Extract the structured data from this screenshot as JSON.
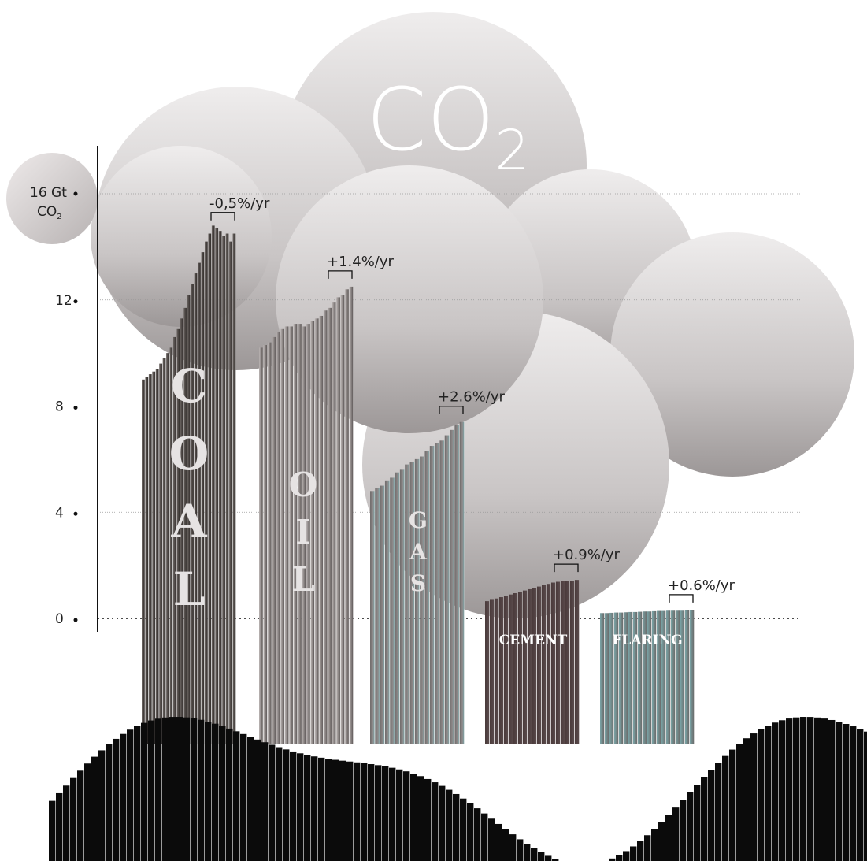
{
  "chart_data": {
    "type": "bar",
    "unit_label": "16 Gt",
    "unit_sub": "CO",
    "unit_sub_small": "2",
    "cloud_title": "CO",
    "cloud_title_sub": "2",
    "ylim": [
      0,
      16
    ],
    "yticks": [
      {
        "value": 0,
        "label": "0"
      },
      {
        "value": 4,
        "label": "4"
      },
      {
        "value": 8,
        "label": "8"
      },
      {
        "value": 12,
        "label": "12"
      }
    ],
    "series": [
      {
        "name": "COAL",
        "color": "#55504d",
        "values": [
          9.0,
          9.1,
          9.2,
          9.3,
          9.4,
          9.6,
          9.8,
          10.0,
          10.2,
          10.6,
          10.9,
          11.3,
          11.7,
          12.2,
          12.6,
          13.0,
          13.4,
          13.8,
          14.2,
          14.5,
          14.8,
          14.7,
          14.6,
          14.4,
          14.5,
          14.2,
          14.5
        ],
        "growth": "-0,5%/yr"
      },
      {
        "name": "OIL",
        "color": "#8b8584",
        "values": [
          10.2,
          10.3,
          10.4,
          10.6,
          10.8,
          10.9,
          11.0,
          11.0,
          11.1,
          11.1,
          11.0,
          11.1,
          11.2,
          11.3,
          11.4,
          11.6,
          11.7,
          11.9,
          12.1,
          12.2,
          12.4,
          12.5
        ],
        "growth": "+1.4%/yr"
      },
      {
        "name": "GAS",
        "color": "#7f7c7c",
        "values": [
          4.8,
          4.9,
          5.0,
          5.2,
          5.3,
          5.5,
          5.6,
          5.8,
          5.9,
          6.0,
          6.1,
          6.3,
          6.5,
          6.6,
          6.7,
          6.9,
          7.1,
          7.3,
          7.4
        ],
        "growth": "+2.6%/yr"
      },
      {
        "name": "CEMENT",
        "color": "#4a3c3d",
        "values": [
          0.65,
          0.7,
          0.75,
          0.8,
          0.85,
          0.9,
          0.95,
          1.0,
          1.05,
          1.1,
          1.15,
          1.2,
          1.25,
          1.3,
          1.35,
          1.38,
          1.4,
          1.4,
          1.42,
          1.45
        ],
        "growth": "+0.9%/yr"
      },
      {
        "name": "FLARING",
        "color": "#5d8587",
        "values": [
          0.2,
          0.2,
          0.21,
          0.22,
          0.22,
          0.23,
          0.24,
          0.24,
          0.25,
          0.26,
          0.26,
          0.27,
          0.28,
          0.28,
          0.29,
          0.29,
          0.29,
          0.29,
          0.3,
          0.3
        ],
        "growth": "+0.6%/yr"
      }
    ]
  }
}
